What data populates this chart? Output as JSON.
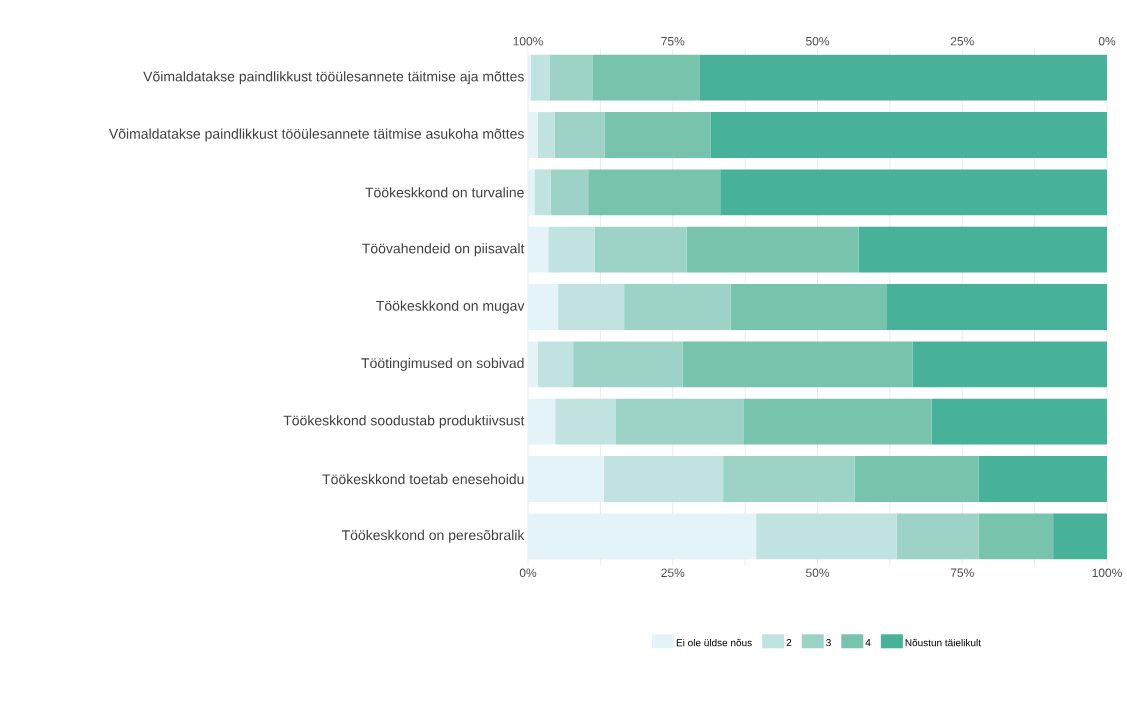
{
  "chart_data": {
    "type": "bar",
    "orientation": "horizontal",
    "stacked": true,
    "grid": "x",
    "legend": "bottom",
    "categories": [
      "Võimaldatakse paindlikkust tööülesannete täitmise aja mõttes",
      "Võimaldatakse paindlikkust tööülesannete täitmise asukoha mõttes",
      "Töökeskkond on turvaline",
      "Töövahendeid on piisavalt",
      "Töökeskkond on mugav",
      "Töötingimused on sobivad",
      "Töökeskkond soodustab produktiivsust",
      "Töökeskkond toetab enesehoidu",
      "Töökeskkond on peresõbralik"
    ],
    "series": [
      {
        "name": "Ei ole üldse nõus",
        "color": "#e4f3f8",
        "values": [
          0.5,
          1.7,
          1.1,
          3.5,
          5.2,
          1.7,
          4.7,
          13.1,
          39.4
        ]
      },
      {
        "name": "2",
        "color": "#c0e3e0",
        "values": [
          3.2,
          2.9,
          2.8,
          8.0,
          11.4,
          6.1,
          10.5,
          20.6,
          24.3
        ]
      },
      {
        "name": "3",
        "color": "#9dd3c6",
        "values": [
          7.4,
          8.6,
          6.5,
          15.9,
          18.4,
          18.9,
          22.1,
          22.7,
          14.1
        ]
      },
      {
        "name": "4",
        "color": "#77c3ae",
        "values": [
          18.6,
          18.3,
          22.8,
          29.7,
          27.0,
          39.7,
          32.4,
          21.4,
          12.9
        ]
      },
      {
        "name": "Nõustun täielikult",
        "color": "#47b299",
        "values": [
          70.3,
          68.5,
          66.8,
          42.9,
          38.0,
          33.6,
          30.3,
          22.2,
          9.3
        ]
      }
    ],
    "xlim": [
      0,
      100
    ],
    "xticks": [
      {
        "value": 0,
        "label": "0%"
      },
      {
        "value": 12.5,
        "label": null
      },
      {
        "value": 25,
        "label": "25%"
      },
      {
        "value": 37.5,
        "label": null
      },
      {
        "value": 50,
        "label": "50%"
      },
      {
        "value": 62.5,
        "label": null
      },
      {
        "value": 75,
        "label": "75%"
      },
      {
        "value": 87.5,
        "label": null
      },
      {
        "value": 100,
        "label": "100%"
      }
    ],
    "x2lim": [
      100,
      0
    ],
    "x2ticks": [
      {
        "value": 0,
        "label": "0%"
      },
      {
        "value": 12.5,
        "label": null
      },
      {
        "value": 25,
        "label": "25%"
      },
      {
        "value": 37.5,
        "label": null
      },
      {
        "value": 50,
        "label": "50%"
      },
      {
        "value": 62.5,
        "label": null
      },
      {
        "value": 75,
        "label": "75%"
      },
      {
        "value": 87.5,
        "label": null
      },
      {
        "value": 100,
        "label": "100%"
      }
    ]
  }
}
